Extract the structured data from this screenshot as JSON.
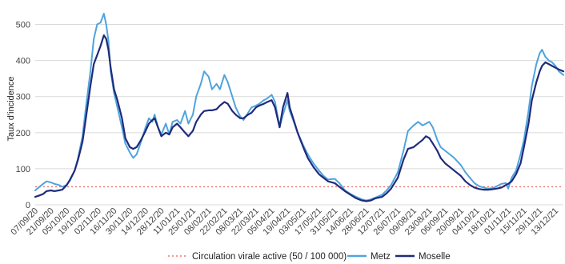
{
  "chart_data": {
    "type": "line",
    "ylabel": "Taux d'incidence",
    "ylim": [
      0,
      550
    ],
    "y_ticks": [
      0,
      100,
      200,
      300,
      400,
      500
    ],
    "grid": "horizontal",
    "legend_position": "bottom",
    "x_tick_labels": [
      "07/09/20",
      "21/09/20",
      "05/10/20",
      "19/10/20",
      "02/11/20",
      "16/11/20",
      "30/11/20",
      "14/12/20",
      "28/12/20",
      "11/01/21",
      "25/01/21",
      "08/02/21",
      "22/02/21",
      "08/03/21",
      "22/03/21",
      "05/04/21",
      "19/04/21",
      "03/05/21",
      "17/05/21",
      "31/05/21",
      "14/06/21",
      "28/06/21",
      "12/07/21",
      "26/07/21",
      "09/08/21",
      "23/08/21",
      "06/09/21",
      "20/09/21",
      "04/10/21",
      "18/10/21",
      "01/11/21",
      "15/11/21",
      "29/11/21",
      "13/12/21"
    ],
    "x_start": "2020-09-07",
    "x_end": "2021-12-20",
    "threshold": {
      "name": "Circulation virale active (50 / 100 000)",
      "value": 50,
      "color": "#e8736e"
    },
    "series": [
      {
        "name": "Metz",
        "color": "#4fa3de",
        "points": [
          [
            "2020-09-07",
            40
          ],
          [
            "2020-09-10",
            48
          ],
          [
            "2020-09-14",
            58
          ],
          [
            "2020-09-17",
            65
          ],
          [
            "2020-09-21",
            62
          ],
          [
            "2020-09-24",
            58
          ],
          [
            "2020-09-28",
            55
          ],
          [
            "2020-10-01",
            50
          ],
          [
            "2020-10-05",
            55
          ],
          [
            "2020-10-08",
            68
          ],
          [
            "2020-10-12",
            95
          ],
          [
            "2020-10-15",
            130
          ],
          [
            "2020-10-19",
            190
          ],
          [
            "2020-10-22",
            270
          ],
          [
            "2020-10-26",
            370
          ],
          [
            "2020-10-29",
            460
          ],
          [
            "2020-11-01",
            500
          ],
          [
            "2020-11-04",
            505
          ],
          [
            "2020-11-07",
            530
          ],
          [
            "2020-11-09",
            500
          ],
          [
            "2020-11-11",
            455
          ],
          [
            "2020-11-13",
            370
          ],
          [
            "2020-11-16",
            310
          ],
          [
            "2020-11-19",
            270
          ],
          [
            "2020-11-23",
            215
          ],
          [
            "2020-11-26",
            170
          ],
          [
            "2020-11-30",
            145
          ],
          [
            "2020-12-03",
            130
          ],
          [
            "2020-12-06",
            140
          ],
          [
            "2020-12-10",
            175
          ],
          [
            "2020-12-14",
            215
          ],
          [
            "2020-12-17",
            240
          ],
          [
            "2020-12-20",
            230
          ],
          [
            "2020-12-22",
            250
          ],
          [
            "2020-12-25",
            215
          ],
          [
            "2020-12-28",
            195
          ],
          [
            "2021-01-01",
            225
          ],
          [
            "2021-01-04",
            195
          ],
          [
            "2021-01-07",
            230
          ],
          [
            "2021-01-11",
            235
          ],
          [
            "2021-01-14",
            225
          ],
          [
            "2021-01-18",
            260
          ],
          [
            "2021-01-21",
            225
          ],
          [
            "2021-01-25",
            250
          ],
          [
            "2021-01-28",
            300
          ],
          [
            "2021-02-01",
            335
          ],
          [
            "2021-02-04",
            370
          ],
          [
            "2021-02-08",
            355
          ],
          [
            "2021-02-11",
            320
          ],
          [
            "2021-02-15",
            335
          ],
          [
            "2021-02-18",
            320
          ],
          [
            "2021-02-22",
            360
          ],
          [
            "2021-02-25",
            340
          ],
          [
            "2021-03-01",
            300
          ],
          [
            "2021-03-04",
            270
          ],
          [
            "2021-03-08",
            245
          ],
          [
            "2021-03-11",
            235
          ],
          [
            "2021-03-15",
            255
          ],
          [
            "2021-03-18",
            270
          ],
          [
            "2021-03-22",
            275
          ],
          [
            "2021-03-25",
            280
          ],
          [
            "2021-03-29",
            290
          ],
          [
            "2021-04-01",
            295
          ],
          [
            "2021-04-05",
            305
          ],
          [
            "2021-04-08",
            285
          ],
          [
            "2021-04-12",
            215
          ],
          [
            "2021-04-15",
            250
          ],
          [
            "2021-04-19",
            290
          ],
          [
            "2021-04-21",
            260
          ],
          [
            "2021-04-24",
            235
          ],
          [
            "2021-04-28",
            200
          ],
          [
            "2021-05-03",
            165
          ],
          [
            "2021-05-07",
            140
          ],
          [
            "2021-05-12",
            115
          ],
          [
            "2021-05-17",
            95
          ],
          [
            "2021-05-21",
            80
          ],
          [
            "2021-05-25",
            70
          ],
          [
            "2021-05-31",
            72
          ],
          [
            "2021-06-04",
            60
          ],
          [
            "2021-06-09",
            40
          ],
          [
            "2021-06-14",
            30
          ],
          [
            "2021-06-19",
            22
          ],
          [
            "2021-06-24",
            15
          ],
          [
            "2021-06-28",
            12
          ],
          [
            "2021-07-02",
            15
          ],
          [
            "2021-07-06",
            20
          ],
          [
            "2021-07-12",
            28
          ],
          [
            "2021-07-16",
            40
          ],
          [
            "2021-07-20",
            55
          ],
          [
            "2021-07-26",
            90
          ],
          [
            "2021-07-31",
            150
          ],
          [
            "2021-08-04",
            205
          ],
          [
            "2021-08-09",
            220
          ],
          [
            "2021-08-13",
            230
          ],
          [
            "2021-08-17",
            220
          ],
          [
            "2021-08-20",
            225
          ],
          [
            "2021-08-23",
            230
          ],
          [
            "2021-08-26",
            215
          ],
          [
            "2021-08-30",
            180
          ],
          [
            "2021-09-02",
            160
          ],
          [
            "2021-09-06",
            150
          ],
          [
            "2021-09-10",
            140
          ],
          [
            "2021-09-14",
            130
          ],
          [
            "2021-09-20",
            110
          ],
          [
            "2021-09-24",
            90
          ],
          [
            "2021-09-28",
            75
          ],
          [
            "2021-10-02",
            60
          ],
          [
            "2021-10-06",
            52
          ],
          [
            "2021-10-10",
            48
          ],
          [
            "2021-10-14",
            45
          ],
          [
            "2021-10-18",
            46
          ],
          [
            "2021-10-22",
            52
          ],
          [
            "2021-10-26",
            58
          ],
          [
            "2021-10-30",
            60
          ],
          [
            "2021-11-01",
            45
          ],
          [
            "2021-11-04",
            75
          ],
          [
            "2021-11-08",
            95
          ],
          [
            "2021-11-12",
            140
          ],
          [
            "2021-11-15",
            180
          ],
          [
            "2021-11-19",
            260
          ],
          [
            "2021-11-22",
            330
          ],
          [
            "2021-11-26",
            390
          ],
          [
            "2021-11-29",
            420
          ],
          [
            "2021-12-01",
            430
          ],
          [
            "2021-12-04",
            410
          ],
          [
            "2021-12-07",
            400
          ],
          [
            "2021-12-10",
            395
          ],
          [
            "2021-12-13",
            385
          ],
          [
            "2021-12-16",
            370
          ],
          [
            "2021-12-20",
            360
          ]
        ]
      },
      {
        "name": "Moselle",
        "color": "#1f2b7a",
        "points": [
          [
            "2020-09-07",
            22
          ],
          [
            "2020-09-10",
            25
          ],
          [
            "2020-09-14",
            30
          ],
          [
            "2020-09-17",
            38
          ],
          [
            "2020-09-21",
            40
          ],
          [
            "2020-09-24",
            38
          ],
          [
            "2020-09-28",
            40
          ],
          [
            "2020-10-01",
            42
          ],
          [
            "2020-10-05",
            55
          ],
          [
            "2020-10-08",
            70
          ],
          [
            "2020-10-12",
            95
          ],
          [
            "2020-10-15",
            125
          ],
          [
            "2020-10-19",
            175
          ],
          [
            "2020-10-22",
            240
          ],
          [
            "2020-10-26",
            330
          ],
          [
            "2020-10-29",
            390
          ],
          [
            "2020-11-01",
            415
          ],
          [
            "2020-11-04",
            440
          ],
          [
            "2020-11-07",
            470
          ],
          [
            "2020-11-09",
            460
          ],
          [
            "2020-11-11",
            430
          ],
          [
            "2020-11-13",
            380
          ],
          [
            "2020-11-16",
            320
          ],
          [
            "2020-11-19",
            290
          ],
          [
            "2020-11-23",
            240
          ],
          [
            "2020-11-26",
            185
          ],
          [
            "2020-11-30",
            160
          ],
          [
            "2020-12-03",
            155
          ],
          [
            "2020-12-06",
            160
          ],
          [
            "2020-12-10",
            180
          ],
          [
            "2020-12-14",
            205
          ],
          [
            "2020-12-17",
            225
          ],
          [
            "2020-12-20",
            235
          ],
          [
            "2020-12-22",
            240
          ],
          [
            "2020-12-25",
            215
          ],
          [
            "2020-12-28",
            190
          ],
          [
            "2021-01-01",
            200
          ],
          [
            "2021-01-04",
            195
          ],
          [
            "2021-01-07",
            215
          ],
          [
            "2021-01-11",
            225
          ],
          [
            "2021-01-14",
            215
          ],
          [
            "2021-01-18",
            200
          ],
          [
            "2021-01-21",
            190
          ],
          [
            "2021-01-25",
            205
          ],
          [
            "2021-01-28",
            230
          ],
          [
            "2021-02-01",
            250
          ],
          [
            "2021-02-04",
            260
          ],
          [
            "2021-02-08",
            262
          ],
          [
            "2021-02-11",
            262
          ],
          [
            "2021-02-15",
            265
          ],
          [
            "2021-02-18",
            275
          ],
          [
            "2021-02-22",
            285
          ],
          [
            "2021-02-25",
            280
          ],
          [
            "2021-03-01",
            260
          ],
          [
            "2021-03-04",
            250
          ],
          [
            "2021-03-08",
            240
          ],
          [
            "2021-03-11",
            240
          ],
          [
            "2021-03-15",
            250
          ],
          [
            "2021-03-18",
            255
          ],
          [
            "2021-03-22",
            270
          ],
          [
            "2021-03-25",
            275
          ],
          [
            "2021-03-29",
            280
          ],
          [
            "2021-04-01",
            285
          ],
          [
            "2021-04-05",
            290
          ],
          [
            "2021-04-08",
            270
          ],
          [
            "2021-04-12",
            215
          ],
          [
            "2021-04-15",
            270
          ],
          [
            "2021-04-19",
            310
          ],
          [
            "2021-04-21",
            270
          ],
          [
            "2021-04-24",
            240
          ],
          [
            "2021-04-28",
            200
          ],
          [
            "2021-05-03",
            160
          ],
          [
            "2021-05-07",
            130
          ],
          [
            "2021-05-12",
            105
          ],
          [
            "2021-05-17",
            85
          ],
          [
            "2021-05-21",
            75
          ],
          [
            "2021-05-25",
            65
          ],
          [
            "2021-05-31",
            60
          ],
          [
            "2021-06-04",
            50
          ],
          [
            "2021-06-09",
            38
          ],
          [
            "2021-06-14",
            28
          ],
          [
            "2021-06-19",
            18
          ],
          [
            "2021-06-24",
            12
          ],
          [
            "2021-06-28",
            10
          ],
          [
            "2021-07-02",
            12
          ],
          [
            "2021-07-06",
            18
          ],
          [
            "2021-07-12",
            22
          ],
          [
            "2021-07-16",
            32
          ],
          [
            "2021-07-20",
            45
          ],
          [
            "2021-07-26",
            75
          ],
          [
            "2021-07-31",
            125
          ],
          [
            "2021-08-04",
            155
          ],
          [
            "2021-08-09",
            160
          ],
          [
            "2021-08-13",
            170
          ],
          [
            "2021-08-17",
            180
          ],
          [
            "2021-08-20",
            190
          ],
          [
            "2021-08-23",
            185
          ],
          [
            "2021-08-26",
            170
          ],
          [
            "2021-08-30",
            150
          ],
          [
            "2021-09-02",
            130
          ],
          [
            "2021-09-06",
            115
          ],
          [
            "2021-09-10",
            105
          ],
          [
            "2021-09-14",
            95
          ],
          [
            "2021-09-20",
            80
          ],
          [
            "2021-09-24",
            65
          ],
          [
            "2021-09-28",
            55
          ],
          [
            "2021-10-02",
            48
          ],
          [
            "2021-10-06",
            44
          ],
          [
            "2021-10-10",
            42
          ],
          [
            "2021-10-14",
            42
          ],
          [
            "2021-10-18",
            43
          ],
          [
            "2021-10-22",
            45
          ],
          [
            "2021-10-26",
            48
          ],
          [
            "2021-10-30",
            55
          ],
          [
            "2021-11-01",
            58
          ],
          [
            "2021-11-04",
            65
          ],
          [
            "2021-11-08",
            85
          ],
          [
            "2021-11-12",
            115
          ],
          [
            "2021-11-15",
            160
          ],
          [
            "2021-11-19",
            225
          ],
          [
            "2021-11-22",
            290
          ],
          [
            "2021-11-26",
            340
          ],
          [
            "2021-11-29",
            370
          ],
          [
            "2021-12-01",
            385
          ],
          [
            "2021-12-04",
            395
          ],
          [
            "2021-12-07",
            390
          ],
          [
            "2021-12-10",
            385
          ],
          [
            "2021-12-13",
            380
          ],
          [
            "2021-12-16",
            375
          ],
          [
            "2021-12-20",
            370
          ]
        ]
      }
    ]
  }
}
